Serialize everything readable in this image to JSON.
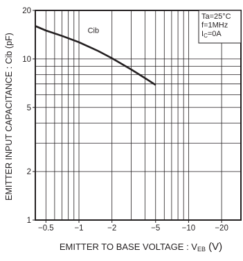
{
  "chart_data": {
    "type": "line",
    "title": "",
    "xlabel": "EMITTER TO BASE VOLTAGE : VEB (V)",
    "xlabel_parts": {
      "main": "EMITTER TO BASE VOLTAGE : V",
      "sub": "EB",
      "unit": " (V)"
    },
    "ylabel": "EMITTER INPUT CAPACITANCE : Cib (pF)",
    "x_scale": "log",
    "y_scale": "log",
    "xlim": [
      -0.4,
      -30
    ],
    "ylim": [
      1,
      20
    ],
    "x_ticks": [
      {
        "value": -0.5,
        "label": "−0.5"
      },
      {
        "value": -1,
        "label": "−1"
      },
      {
        "value": -2,
        "label": "−2"
      },
      {
        "value": -5,
        "label": "−5"
      },
      {
        "value": -10,
        "label": "−10"
      },
      {
        "value": -20,
        "label": "−20"
      }
    ],
    "y_ticks": [
      {
        "value": 1,
        "label": "1"
      },
      {
        "value": 2,
        "label": "2"
      },
      {
        "value": 5,
        "label": "5"
      },
      {
        "value": 10,
        "label": "10"
      },
      {
        "value": 20,
        "label": "20"
      }
    ],
    "x_minor_grid": [
      -0.4,
      -0.5,
      -0.6,
      -0.7,
      -0.8,
      -0.9,
      -1,
      -2,
      -3,
      -4,
      -5,
      -6,
      -7,
      -8,
      -9,
      -10,
      -20,
      -30
    ],
    "y_minor_grid": [
      2,
      3,
      4,
      5,
      6,
      7,
      8,
      9,
      10
    ],
    "grid": true,
    "legend": {
      "position": "top-right",
      "lines": [
        "Ta=25°C",
        "f=1MHz",
        "IC=0A"
      ]
    },
    "series": [
      {
        "name": "Cib",
        "x": [
          -0.4,
          -0.5,
          -0.7,
          -1.0,
          -1.5,
          -2.0,
          -3.0,
          -4.0,
          -5.0
        ],
        "y": [
          16.0,
          15.0,
          13.9,
          12.7,
          11.2,
          10.1,
          8.6,
          7.6,
          6.9
        ]
      }
    ]
  }
}
